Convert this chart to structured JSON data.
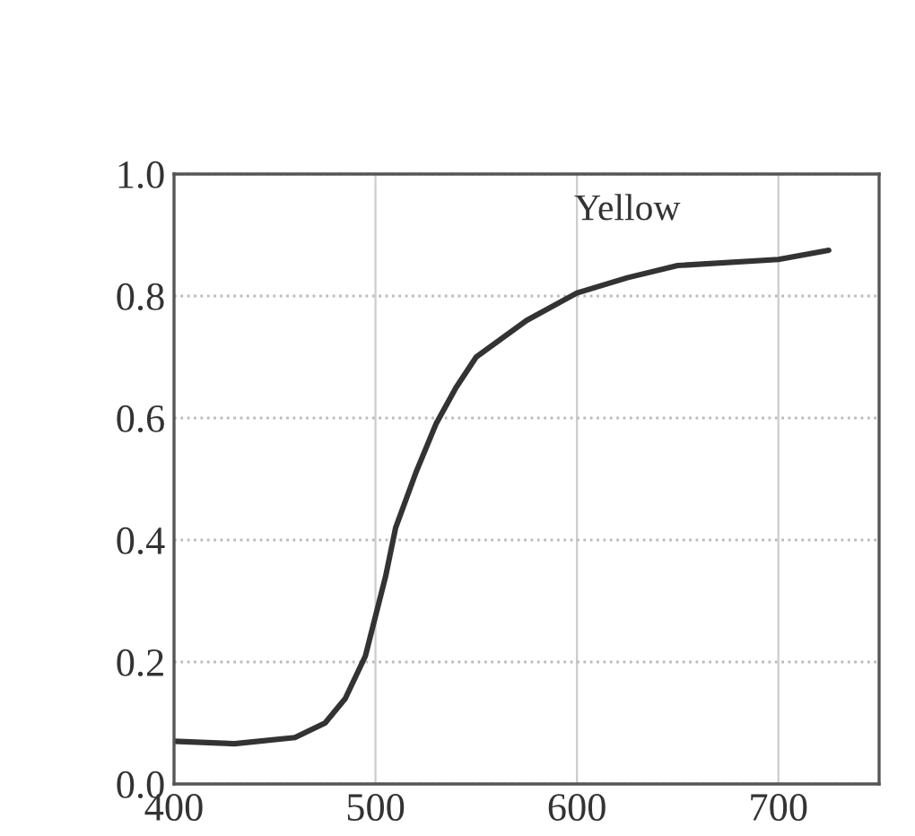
{
  "chart_data": {
    "type": "line",
    "xlim": [
      400,
      750
    ],
    "ylim": [
      0,
      1
    ],
    "xticks": [
      400,
      500,
      600,
      700
    ],
    "yticks": [
      {
        "value": 0,
        "label": "0.0"
      },
      {
        "value": 0.2,
        "label": "0.2"
      },
      {
        "value": 0.4,
        "label": "0.4"
      },
      {
        "value": 0.6,
        "label": "0.6"
      },
      {
        "value": 0.8,
        "label": "0.8"
      },
      {
        "value": 1.0,
        "label": "1.0"
      }
    ],
    "grid": true,
    "legend": false,
    "marker": "none",
    "line_style": "solid",
    "series": [
      {
        "name": "Yellow",
        "color": "#333333",
        "x": [
          400,
          430,
          460,
          475,
          485,
          495,
          505,
          510,
          520,
          530,
          540,
          550,
          575,
          600,
          625,
          650,
          700,
          725
        ],
        "values": [
          0.07,
          0.066,
          0.076,
          0.1,
          0.14,
          0.21,
          0.34,
          0.42,
          0.51,
          0.59,
          0.65,
          0.7,
          0.76,
          0.805,
          0.83,
          0.85,
          0.86,
          0.875
        ]
      }
    ]
  }
}
